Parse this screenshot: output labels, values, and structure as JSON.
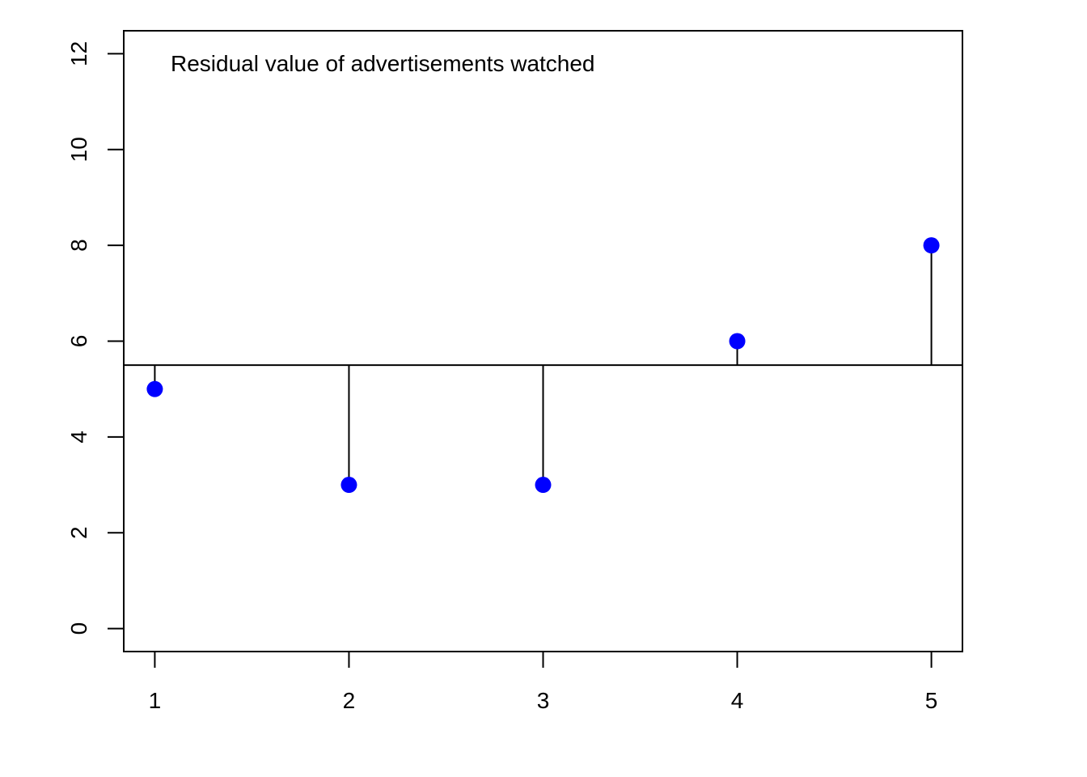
{
  "chart_data": {
    "type": "scatter",
    "title": "",
    "xlabel": "",
    "ylabel": "",
    "annotation": "Residual value of advertisements watched",
    "x": [
      1,
      2,
      3,
      4,
      5
    ],
    "values": [
      5,
      3,
      3,
      6,
      8
    ],
    "reference_line": 5.5,
    "xlim": [
      0.84,
      5.16
    ],
    "ylim": [
      -0.48,
      12.48
    ],
    "x_ticks": [
      "1",
      "2",
      "3",
      "4",
      "5"
    ],
    "y_ticks": [
      "0",
      "2",
      "4",
      "6",
      "8",
      "10",
      "12"
    ],
    "grid": false,
    "legend": "none",
    "point_color": "#0000ff",
    "line_color": "#000000"
  }
}
